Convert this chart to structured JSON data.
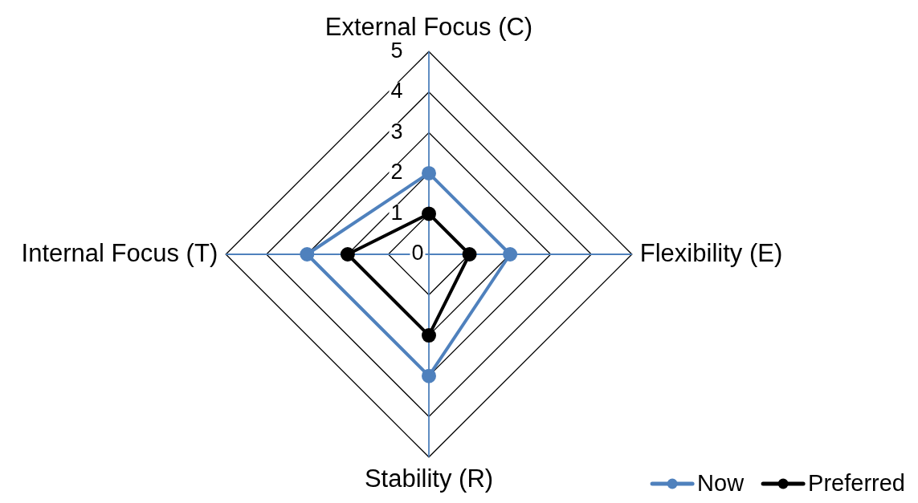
{
  "chart_data": {
    "type": "radar",
    "categories": [
      "External Focus (C)",
      "Flexibility (E)",
      "Stability (R)",
      "Internal Focus (T)"
    ],
    "series": [
      {
        "name": "Now",
        "color": "#4f81bd",
        "values": [
          2,
          2,
          3,
          3
        ]
      },
      {
        "name": "Preferred",
        "color": "#000000",
        "values": [
          1,
          1,
          2,
          2
        ]
      }
    ],
    "ylim": [
      0,
      5
    ],
    "yticks": [
      0,
      1,
      2,
      3,
      4,
      5
    ],
    "grid": true,
    "legend": "bottom right",
    "marker": "circle",
    "line_style": "solid"
  }
}
